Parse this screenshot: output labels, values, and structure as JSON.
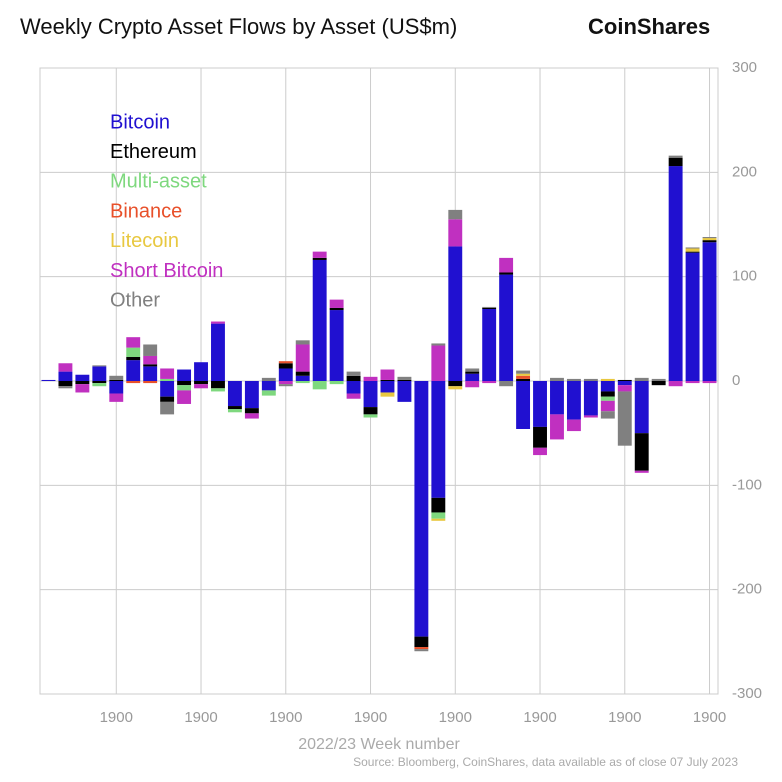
{
  "chart_data": {
    "type": "bar",
    "stacked": true,
    "title": "Weekly Crypto Asset Flows by Asset (US$m)",
    "brand": "CoinShares",
    "x_label": "2022/23 Week number",
    "source": "Source: Bloomberg, CoinShares, data available as of close 07 July 2023",
    "categories": [
      null,
      null,
      null,
      null,
      "1900",
      null,
      null,
      null,
      null,
      "1900",
      null,
      null,
      null,
      null,
      "1900",
      null,
      null,
      null,
      null,
      "1900",
      null,
      null,
      null,
      null,
      "1900",
      null,
      null,
      null,
      null,
      "1900",
      null,
      null,
      null,
      null,
      "1900",
      null,
      null,
      null,
      null,
      "1900"
    ],
    "series": [
      {
        "name": "Bitcoin",
        "color": "#2010d0",
        "values": [
          1,
          9,
          6,
          14,
          -12,
          20,
          14,
          -15,
          11,
          18,
          55,
          -24,
          -26,
          -9,
          12,
          5,
          116,
          68,
          -12,
          -25,
          -11,
          -20,
          -245,
          -112,
          129,
          7,
          69,
          102,
          -46,
          -44,
          -32,
          -37,
          -33,
          -10,
          -4,
          -50,
          0,
          206,
          123,
          133
        ]
      },
      {
        "name": "Ethereum",
        "color": "#000000",
        "values": [
          0,
          -5,
          -3,
          -2,
          1,
          3,
          2,
          -5,
          -4,
          -3,
          -7,
          -3,
          -5,
          0,
          5,
          4,
          2,
          2,
          5,
          -7,
          1,
          1,
          -10,
          -14,
          -5,
          2,
          1,
          2,
          2,
          -20,
          0,
          0,
          0,
          -5,
          1,
          -36,
          -4,
          8,
          1,
          2
        ]
      },
      {
        "name": "Multi-asset",
        "color": "#7ed87e",
        "values": [
          0,
          0,
          0,
          -3,
          0,
          9,
          0,
          2,
          -5,
          0,
          -3,
          -3,
          0,
          -5,
          0,
          -2,
          -8,
          -3,
          0,
          -3,
          0,
          0,
          0,
          -6,
          0,
          0,
          0,
          0,
          0,
          0,
          0,
          0,
          0,
          -4,
          0,
          0,
          0,
          0,
          0,
          0
        ]
      },
      {
        "name": "Binance",
        "color": "#e8502a",
        "values": [
          0,
          0,
          0,
          0,
          0,
          -2,
          -2,
          0,
          0,
          0,
          0,
          0,
          0,
          0,
          2,
          0,
          0,
          0,
          0,
          0,
          0,
          0,
          -2,
          0,
          0,
          0,
          0,
          0,
          3,
          0,
          0,
          0,
          0,
          0,
          0,
          0,
          0,
          0,
          0,
          0
        ]
      },
      {
        "name": "Litecoin",
        "color": "#e8c840",
        "values": [
          0,
          0,
          0,
          0,
          0,
          0,
          0,
          0,
          0,
          0,
          0,
          0,
          0,
          0,
          0,
          0,
          0,
          0,
          0,
          0,
          -4,
          0,
          0,
          -2,
          -3,
          0,
          0,
          0,
          2,
          0,
          0,
          0,
          0,
          2,
          0,
          0,
          0,
          0,
          3,
          2
        ]
      },
      {
        "name": "Short Bitcoin",
        "color": "#c030c0",
        "values": [
          0,
          8,
          -8,
          0,
          -8,
          10,
          8,
          10,
          -13,
          -4,
          2,
          0,
          -5,
          0,
          -3,
          26,
          6,
          8,
          -5,
          4,
          10,
          0,
          0,
          34,
          26,
          -6,
          -2,
          14,
          0,
          -7,
          -24,
          -11,
          -2,
          -10,
          -6,
          -2,
          0,
          -5,
          -2,
          -2
        ]
      },
      {
        "name": "Other",
        "color": "#808080",
        "values": [
          0,
          -2,
          0,
          1,
          4,
          0,
          11,
          -12,
          0,
          0,
          0,
          0,
          0,
          3,
          -2,
          4,
          0,
          0,
          4,
          0,
          0,
          3,
          -2,
          2,
          9,
          3,
          1,
          -5,
          3,
          0,
          3,
          2,
          2,
          -7,
          -52,
          3,
          2,
          2,
          1,
          1
        ]
      }
    ],
    "ylim": [
      -300,
      300
    ],
    "yticks": [
      300,
      200,
      100,
      0,
      -100,
      -200,
      -300
    ],
    "grid": true,
    "legend": "upper left"
  }
}
